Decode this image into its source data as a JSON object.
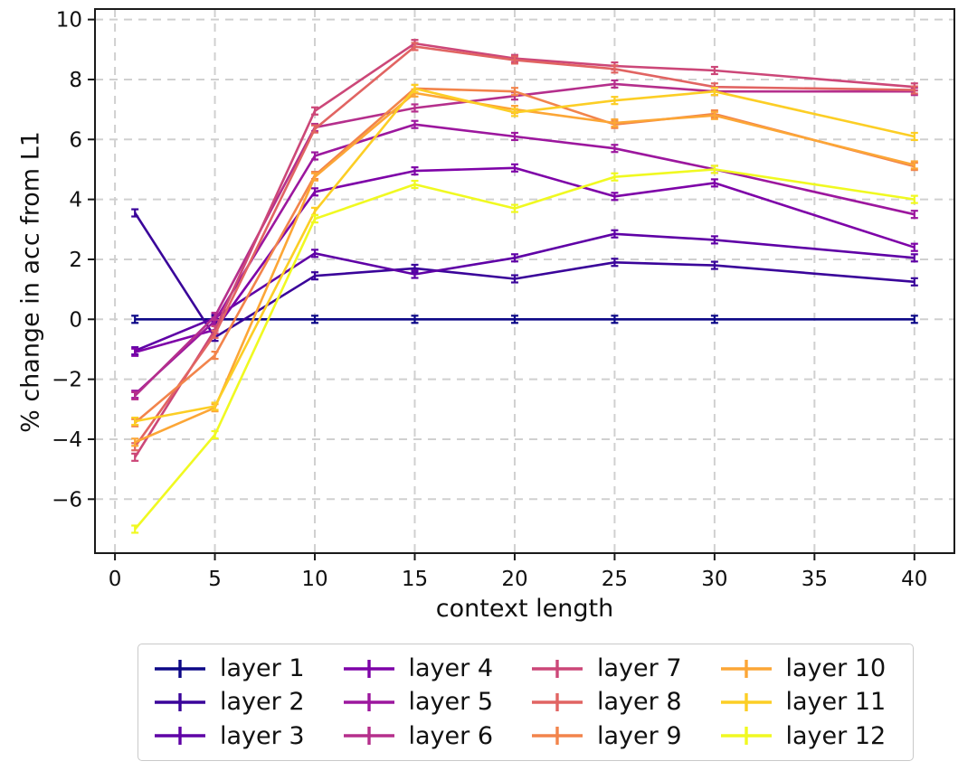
{
  "figure": {
    "background_color": "#ffffff",
    "grid_color": "#d0d0d0",
    "spine_color": "#1a1a1a",
    "text_color": "#111111"
  },
  "chart_data": {
    "type": "line",
    "title": "",
    "xlabel": "context length",
    "ylabel": "% change in acc from L1",
    "x": [
      1,
      5,
      10,
      15,
      20,
      25,
      30,
      40
    ],
    "xticks": [
      0,
      5,
      10,
      15,
      20,
      25,
      30,
      35,
      40
    ],
    "yticks": [
      -6,
      -4,
      -2,
      0,
      2,
      4,
      6,
      8,
      10
    ],
    "xlim": [
      -1,
      42
    ],
    "ylim": [
      -7.8,
      10.35
    ],
    "grid": true,
    "grid_style": "dashed",
    "error_bar": 0.12,
    "legend_position": "below-axes, 4 columns",
    "series": [
      {
        "name": "layer 1",
        "color": "#0d0887",
        "values": [
          0,
          0,
          0,
          0,
          0,
          0,
          0,
          0
        ]
      },
      {
        "name": "layer 2",
        "color": "#3a049a",
        "values": [
          3.55,
          -0.6,
          1.45,
          1.7,
          1.35,
          1.9,
          1.8,
          1.25
        ]
      },
      {
        "name": "layer 3",
        "color": "#5f01a6",
        "values": [
          -1.05,
          0.05,
          2.2,
          1.5,
          2.05,
          2.85,
          2.65,
          2.05
        ]
      },
      {
        "name": "layer 4",
        "color": "#7e03a8",
        "values": [
          -1.1,
          -0.35,
          4.25,
          4.95,
          5.05,
          4.1,
          4.55,
          2.4
        ]
      },
      {
        "name": "layer 5",
        "color": "#9c179e",
        "values": [
          -2.5,
          -0.05,
          5.45,
          6.5,
          6.1,
          5.7,
          5.0,
          3.5
        ]
      },
      {
        "name": "layer 6",
        "color": "#b52f8c",
        "values": [
          -2.55,
          0.1,
          6.4,
          7.05,
          7.45,
          7.85,
          7.6,
          7.6
        ]
      },
      {
        "name": "layer 7",
        "color": "#cc4778",
        "values": [
          -4.6,
          -0.35,
          6.95,
          9.2,
          8.7,
          8.45,
          8.3,
          7.75
        ]
      },
      {
        "name": "layer 8",
        "color": "#e16462",
        "values": [
          -4.25,
          -0.5,
          6.35,
          9.1,
          8.65,
          8.35,
          7.75,
          7.65
        ]
      },
      {
        "name": "layer 9",
        "color": "#f2844b",
        "values": [
          -3.45,
          -1.2,
          4.8,
          7.7,
          7.6,
          6.5,
          6.85,
          5.1
        ]
      },
      {
        "name": "layer 10",
        "color": "#fca636",
        "values": [
          -4.1,
          -2.95,
          4.75,
          7.55,
          7.0,
          6.55,
          6.8,
          5.15
        ]
      },
      {
        "name": "layer 11",
        "color": "#fcce25",
        "values": [
          -3.4,
          -2.9,
          3.6,
          7.7,
          6.9,
          7.3,
          7.6,
          6.1
        ]
      },
      {
        "name": "layer 12",
        "color": "#f0f921",
        "values": [
          -7.0,
          -3.85,
          3.35,
          4.5,
          3.7,
          4.75,
          5.0,
          4.0
        ]
      }
    ]
  }
}
